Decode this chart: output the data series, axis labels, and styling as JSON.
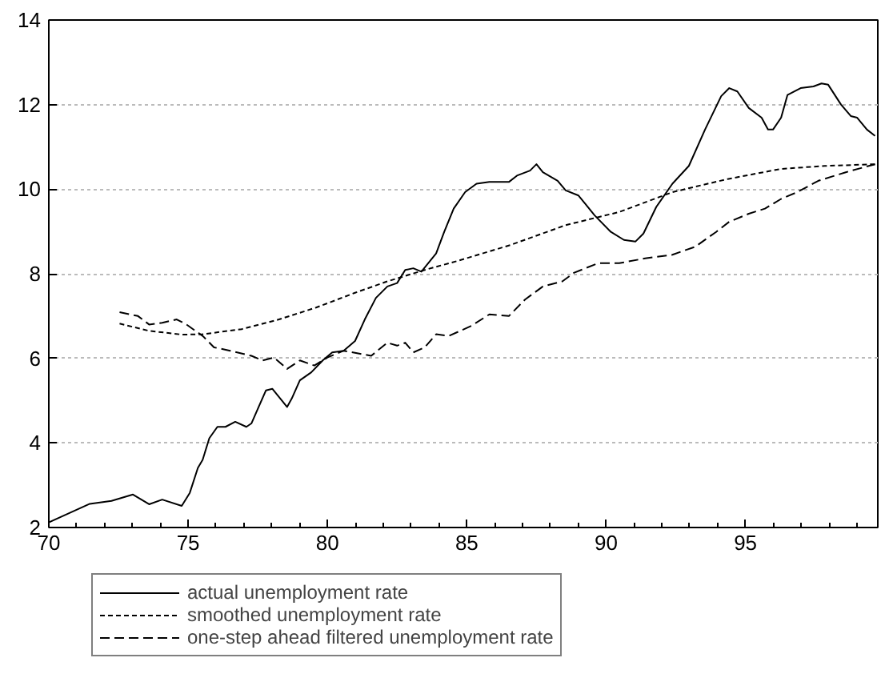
{
  "chart_data": {
    "type": "line",
    "xlim": [
      70,
      99.75
    ],
    "ylim": [
      2,
      14
    ],
    "xticks": [
      70,
      75,
      80,
      85,
      90,
      95
    ],
    "yticks": [
      2,
      4,
      6,
      8,
      10,
      12,
      14
    ],
    "grid": "y",
    "legend": "bottom",
    "marker": "none",
    "series": [
      {
        "name": "actual unemployment rate",
        "color": "#000000",
        "line_style": "solid",
        "x": [
          70.0,
          70.6,
          71.47,
          72.25,
          73.02,
          73.6,
          74.07,
          74.77,
          75.06,
          75.35,
          75.52,
          75.76,
          76.05,
          76.34,
          76.69,
          77.09,
          77.27,
          77.79,
          78.02,
          78.55,
          78.72,
          79.01,
          79.42,
          79.83,
          80.17,
          80.58,
          80.99,
          81.34,
          81.74,
          82.15,
          82.5,
          82.79,
          83.08,
          83.37,
          83.9,
          84.19,
          84.53,
          84.94,
          85.35,
          85.81,
          86.51,
          86.8,
          87.27,
          87.5,
          87.73,
          88.26,
          88.55,
          89.01,
          89.59,
          90.17,
          90.64,
          91.05,
          91.34,
          91.8,
          92.38,
          92.97,
          93.55,
          94.13,
          94.42,
          94.71,
          95.12,
          95.58,
          95.81,
          95.99,
          96.28,
          96.51,
          96.98,
          97.44,
          97.73,
          97.97,
          98.43,
          98.78,
          99.01,
          99.36,
          99.65
        ],
        "values": [
          2.12,
          2.3,
          2.56,
          2.63,
          2.78,
          2.55,
          2.66,
          2.51,
          2.82,
          3.41,
          3.6,
          4.11,
          4.38,
          4.38,
          4.5,
          4.38,
          4.46,
          5.24,
          5.28,
          4.85,
          5.05,
          5.48,
          5.67,
          5.95,
          6.14,
          6.18,
          6.41,
          6.92,
          7.43,
          7.7,
          7.78,
          8.09,
          8.13,
          8.05,
          8.48,
          8.99,
          9.54,
          9.93,
          10.13,
          10.17,
          10.17,
          10.32,
          10.44,
          10.59,
          10.4,
          10.2,
          9.97,
          9.85,
          9.38,
          8.99,
          8.8,
          8.76,
          8.95,
          9.58,
          10.13,
          10.55,
          11.41,
          12.2,
          12.39,
          12.31,
          11.92,
          11.69,
          11.41,
          11.41,
          11.69,
          12.23,
          12.39,
          12.43,
          12.5,
          12.47,
          12.0,
          11.73,
          11.69,
          11.41,
          11.26
        ]
      },
      {
        "name": "smoothed unemployment rate",
        "color": "#000000",
        "line_style": "dotted",
        "x": [
          72.54,
          73.6,
          74.8,
          75.52,
          76.92,
          78.26,
          79.59,
          80.99,
          82.15,
          83.49,
          84.65,
          86.57,
          88.55,
          90.47,
          92.38,
          94.36,
          96.28,
          97.85,
          99.65
        ],
        "values": [
          6.82,
          6.65,
          6.56,
          6.57,
          6.69,
          6.92,
          7.2,
          7.55,
          7.82,
          8.09,
          8.3,
          8.68,
          9.15,
          9.46,
          9.93,
          10.24,
          10.48,
          10.55,
          10.59
        ]
      },
      {
        "name": "one-step ahead filtered unemployment rate",
        "color": "#000000",
        "line_style": "dashed",
        "x": [
          72.54,
          73.2,
          73.6,
          74.07,
          74.59,
          74.94,
          75.52,
          75.93,
          76.51,
          77.27,
          77.67,
          78.08,
          78.55,
          79.01,
          79.53,
          80.0,
          80.58,
          81.57,
          82.15,
          82.5,
          82.79,
          83.08,
          83.49,
          83.9,
          84.36,
          85.17,
          85.81,
          86.51,
          87.09,
          87.73,
          88.43,
          88.84,
          89.71,
          90.47,
          91.45,
          92.38,
          93.2,
          93.95,
          94.42,
          95.12,
          95.7,
          96.28,
          96.86,
          97.62,
          98.6,
          99.65
        ],
        "values": [
          7.09,
          7.0,
          6.8,
          6.84,
          6.92,
          6.8,
          6.53,
          6.26,
          6.18,
          6.06,
          5.95,
          6.02,
          5.75,
          5.95,
          5.83,
          6.02,
          6.18,
          6.06,
          6.37,
          6.3,
          6.37,
          6.14,
          6.26,
          6.57,
          6.53,
          6.77,
          7.04,
          7.0,
          7.39,
          7.7,
          7.82,
          8.02,
          8.25,
          8.25,
          8.37,
          8.45,
          8.64,
          8.99,
          9.23,
          9.42,
          9.54,
          9.77,
          9.93,
          10.2,
          10.4,
          10.59
        ]
      }
    ]
  }
}
